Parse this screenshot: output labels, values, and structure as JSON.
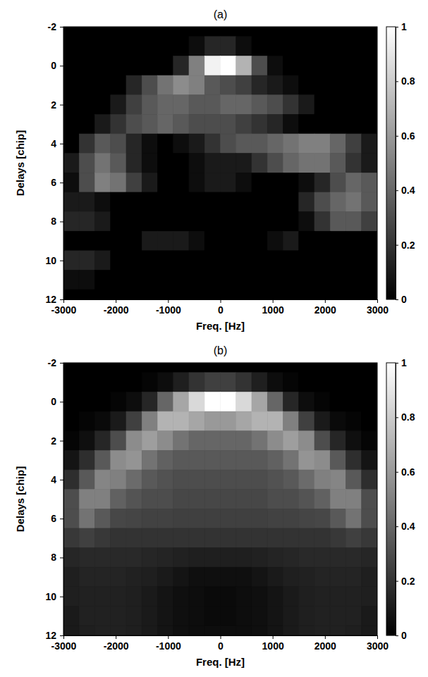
{
  "chart_data": [
    {
      "type": "heatmap",
      "title": "(a)",
      "x_label": "Freq. [Hz]",
      "y_label": "Delays [chip]",
      "xlim": [
        -3000,
        3000
      ],
      "ylim": [
        -2,
        12
      ],
      "xticks": [
        -3000,
        -2000,
        -1000,
        0,
        1000,
        2000,
        3000
      ],
      "yticks": [
        -2,
        0,
        2,
        4,
        6,
        8,
        10,
        12
      ],
      "zlim": [
        0,
        1
      ],
      "zticks": [
        0,
        0.2,
        0.4,
        0.6,
        0.8,
        1
      ],
      "x": [
        -2850,
        -2550,
        -2250,
        -1950,
        -1650,
        -1350,
        -1050,
        -750,
        -450,
        -150,
        150,
        450,
        750,
        1050,
        1350,
        1650,
        1950,
        2250,
        2550,
        2850
      ],
      "y": [
        -2,
        -1,
        0,
        1,
        2,
        3,
        4,
        5,
        6,
        7,
        8,
        9,
        10,
        11,
        12
      ],
      "z": [
        [
          0,
          0,
          0,
          0,
          0,
          0,
          0,
          0,
          0,
          0,
          0,
          0,
          0,
          0,
          0,
          0,
          0,
          0,
          0,
          0
        ],
        [
          0,
          0,
          0,
          0,
          0,
          0,
          0,
          0,
          0.05,
          0.15,
          0.15,
          0.05,
          0,
          0,
          0,
          0,
          0,
          0,
          0,
          0
        ],
        [
          0,
          0,
          0,
          0,
          0,
          0,
          0,
          0.15,
          0.5,
          0.95,
          1,
          0.7,
          0.3,
          0.05,
          0,
          0,
          0,
          0,
          0,
          0
        ],
        [
          0,
          0,
          0,
          0,
          0.15,
          0.3,
          0.45,
          0.55,
          0.5,
          0.35,
          0.3,
          0.25,
          0.15,
          0.1,
          0.05,
          0,
          0,
          0,
          0,
          0
        ],
        [
          0,
          0,
          0,
          0.1,
          0.25,
          0.35,
          0.4,
          0.4,
          0.35,
          0.35,
          0.4,
          0.4,
          0.35,
          0.3,
          0.2,
          0.1,
          0,
          0,
          0,
          0
        ],
        [
          0,
          0,
          0.1,
          0.2,
          0.3,
          0.35,
          0.4,
          0.35,
          0.3,
          0.3,
          0.3,
          0.25,
          0.2,
          0.15,
          0.05,
          0,
          0,
          0,
          0,
          0
        ],
        [
          0,
          0.2,
          0.35,
          0.3,
          0.15,
          0.05,
          0,
          0.05,
          0.1,
          0.2,
          0.3,
          0.35,
          0.35,
          0.4,
          0.45,
          0.5,
          0.5,
          0.4,
          0.25,
          0.1
        ],
        [
          0.1,
          0.3,
          0.45,
          0.35,
          0.15,
          0.05,
          0,
          0,
          0.05,
          0.1,
          0.1,
          0.1,
          0.2,
          0.3,
          0.4,
          0.45,
          0.45,
          0.35,
          0.2,
          0.1
        ],
        [
          0.05,
          0.3,
          0.5,
          0.45,
          0.25,
          0.1,
          0,
          0,
          0.05,
          0.1,
          0.1,
          0.05,
          0,
          0,
          0,
          0.05,
          0.15,
          0.3,
          0.4,
          0.35
        ],
        [
          0.1,
          0.1,
          0.05,
          0,
          0,
          0,
          0,
          0,
          0,
          0,
          0,
          0,
          0,
          0,
          0,
          0.15,
          0.3,
          0.4,
          0.45,
          0.35
        ],
        [
          0.15,
          0.15,
          0.1,
          0,
          0,
          0,
          0,
          0,
          0,
          0,
          0,
          0,
          0,
          0,
          0,
          0.05,
          0.2,
          0.35,
          0.35,
          0.25
        ],
        [
          0,
          0,
          0,
          0,
          0,
          0.1,
          0.1,
          0.1,
          0.05,
          0,
          0,
          0,
          0,
          0.05,
          0.1,
          0,
          0,
          0,
          0,
          0
        ],
        [
          0.15,
          0.15,
          0.1,
          0,
          0,
          0,
          0,
          0,
          0,
          0,
          0,
          0,
          0,
          0,
          0,
          0,
          0,
          0,
          0,
          0
        ],
        [
          0.05,
          0.05,
          0,
          0,
          0,
          0,
          0,
          0,
          0,
          0,
          0,
          0,
          0,
          0,
          0,
          0,
          0,
          0,
          0,
          0
        ],
        [
          0,
          0,
          0,
          0,
          0,
          0,
          0,
          0,
          0,
          0,
          0,
          0,
          0,
          0,
          0,
          0,
          0,
          0,
          0,
          0
        ]
      ]
    },
    {
      "type": "heatmap",
      "title": "(b)",
      "x_label": "Freq. [Hz]",
      "y_label": "Delays [chip]",
      "xlim": [
        -3000,
        3000
      ],
      "ylim": [
        -2,
        12
      ],
      "xticks": [
        -3000,
        -2000,
        -1000,
        0,
        1000,
        2000,
        3000
      ],
      "yticks": [
        -2,
        0,
        2,
        4,
        6,
        8,
        10,
        12
      ],
      "zlim": [
        0,
        1
      ],
      "zticks": [
        0,
        0.2,
        0.4,
        0.6,
        0.8,
        1
      ],
      "x": [
        -2850,
        -2550,
        -2250,
        -1950,
        -1650,
        -1350,
        -1050,
        -750,
        -450,
        -150,
        150,
        450,
        750,
        1050,
        1350,
        1650,
        1950,
        2250,
        2550,
        2850
      ],
      "y": [
        -2,
        -1,
        0,
        1,
        2,
        3,
        4,
        5,
        6,
        7,
        8,
        9,
        10,
        11,
        12
      ],
      "z": [
        [
          0,
          0,
          0,
          0,
          0,
          0,
          0,
          0,
          0,
          0,
          0,
          0,
          0,
          0,
          0,
          0,
          0,
          0,
          0,
          0
        ],
        [
          0,
          0,
          0,
          0,
          0,
          0.02,
          0.05,
          0.12,
          0.2,
          0.25,
          0.25,
          0.2,
          0.12,
          0.05,
          0.02,
          0,
          0,
          0,
          0,
          0
        ],
        [
          0,
          0,
          0,
          0.02,
          0.05,
          0.15,
          0.4,
          0.65,
          0.85,
          1,
          1,
          0.85,
          0.65,
          0.4,
          0.15,
          0.05,
          0.02,
          0,
          0,
          0
        ],
        [
          0,
          0.02,
          0.04,
          0.1,
          0.25,
          0.5,
          0.7,
          0.7,
          0.65,
          0.6,
          0.6,
          0.65,
          0.7,
          0.7,
          0.5,
          0.25,
          0.1,
          0.04,
          0.02,
          0
        ],
        [
          0.02,
          0.06,
          0.15,
          0.3,
          0.55,
          0.62,
          0.55,
          0.45,
          0.4,
          0.4,
          0.4,
          0.4,
          0.45,
          0.55,
          0.62,
          0.55,
          0.3,
          0.15,
          0.06,
          0.02
        ],
        [
          0.08,
          0.18,
          0.35,
          0.55,
          0.58,
          0.45,
          0.38,
          0.35,
          0.35,
          0.35,
          0.35,
          0.35,
          0.35,
          0.38,
          0.45,
          0.58,
          0.55,
          0.35,
          0.18,
          0.08
        ],
        [
          0.18,
          0.35,
          0.52,
          0.5,
          0.42,
          0.35,
          0.32,
          0.3,
          0.3,
          0.3,
          0.3,
          0.3,
          0.3,
          0.32,
          0.35,
          0.42,
          0.5,
          0.52,
          0.35,
          0.18
        ],
        [
          0.3,
          0.5,
          0.5,
          0.38,
          0.33,
          0.3,
          0.3,
          0.28,
          0.28,
          0.28,
          0.28,
          0.28,
          0.28,
          0.3,
          0.3,
          0.33,
          0.38,
          0.5,
          0.5,
          0.3
        ],
        [
          0.3,
          0.45,
          0.35,
          0.28,
          0.27,
          0.26,
          0.26,
          0.25,
          0.25,
          0.25,
          0.25,
          0.25,
          0.25,
          0.26,
          0.26,
          0.27,
          0.28,
          0.35,
          0.45,
          0.3
        ],
        [
          0.22,
          0.25,
          0.22,
          0.2,
          0.2,
          0.2,
          0.2,
          0.2,
          0.2,
          0.2,
          0.2,
          0.2,
          0.2,
          0.2,
          0.2,
          0.2,
          0.2,
          0.22,
          0.25,
          0.22
        ],
        [
          0.15,
          0.16,
          0.16,
          0.16,
          0.16,
          0.15,
          0.14,
          0.13,
          0.12,
          0.12,
          0.12,
          0.12,
          0.13,
          0.14,
          0.15,
          0.16,
          0.16,
          0.16,
          0.16,
          0.15
        ],
        [
          0.12,
          0.14,
          0.14,
          0.14,
          0.13,
          0.12,
          0.1,
          0.08,
          0.06,
          0.06,
          0.06,
          0.06,
          0.08,
          0.1,
          0.12,
          0.13,
          0.14,
          0.14,
          0.14,
          0.12
        ],
        [
          0.12,
          0.13,
          0.13,
          0.13,
          0.12,
          0.1,
          0.08,
          0.06,
          0.05,
          0.04,
          0.04,
          0.05,
          0.06,
          0.08,
          0.1,
          0.12,
          0.13,
          0.13,
          0.13,
          0.12
        ],
        [
          0.1,
          0.13,
          0.13,
          0.13,
          0.12,
          0.1,
          0.08,
          0.06,
          0.05,
          0.04,
          0.04,
          0.05,
          0.06,
          0.08,
          0.1,
          0.12,
          0.13,
          0.13,
          0.13,
          0.1
        ],
        [
          0.1,
          0.12,
          0.13,
          0.13,
          0.12,
          0.1,
          0.08,
          0.06,
          0.05,
          0.05,
          0.05,
          0.05,
          0.06,
          0.08,
          0.1,
          0.12,
          0.13,
          0.13,
          0.12,
          0.1
        ]
      ]
    }
  ]
}
